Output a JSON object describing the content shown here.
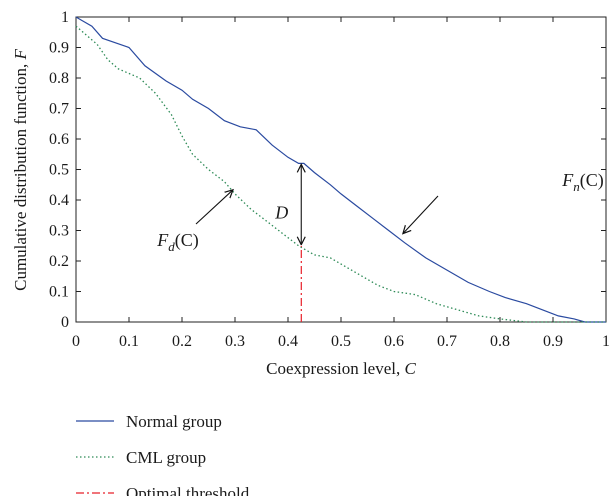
{
  "chart_data": {
    "type": "line",
    "xlabel_text": "Coexpression level, ",
    "xlabel_var": "C",
    "ylabel_text": "Cumulative distribution function, ",
    "ylabel_var": "F",
    "xlim": [
      0,
      1
    ],
    "ylim": [
      0,
      1
    ],
    "x_ticks": [
      "0",
      "0.1",
      "0.2",
      "0.3",
      "0.4",
      "0.5",
      "0.6",
      "0.7",
      "0.8",
      "0.9",
      "1"
    ],
    "y_ticks": [
      "0",
      "0.1",
      "0.2",
      "0.3",
      "0.4",
      "0.5",
      "0.6",
      "0.7",
      "0.8",
      "0.9",
      "1"
    ],
    "grid": false,
    "legend_position": "bottom-outside",
    "series": [
      {
        "name": "Normal group",
        "style": "solid",
        "color": "#2a4aa0",
        "points": [
          [
            0.0,
            1.0
          ],
          [
            0.01,
            0.99
          ],
          [
            0.03,
            0.97
          ],
          [
            0.05,
            0.93
          ],
          [
            0.1,
            0.9
          ],
          [
            0.13,
            0.84
          ],
          [
            0.17,
            0.79
          ],
          [
            0.2,
            0.76
          ],
          [
            0.22,
            0.73
          ],
          [
            0.25,
            0.7
          ],
          [
            0.28,
            0.66
          ],
          [
            0.31,
            0.64
          ],
          [
            0.34,
            0.63
          ],
          [
            0.37,
            0.58
          ],
          [
            0.4,
            0.54
          ],
          [
            0.42,
            0.52
          ],
          [
            0.43,
            0.52
          ],
          [
            0.45,
            0.49
          ],
          [
            0.48,
            0.45
          ],
          [
            0.5,
            0.42
          ],
          [
            0.53,
            0.38
          ],
          [
            0.56,
            0.34
          ],
          [
            0.59,
            0.3
          ],
          [
            0.62,
            0.26
          ],
          [
            0.66,
            0.21
          ],
          [
            0.7,
            0.17
          ],
          [
            0.74,
            0.13
          ],
          [
            0.78,
            0.1
          ],
          [
            0.81,
            0.08
          ],
          [
            0.85,
            0.06
          ],
          [
            0.88,
            0.04
          ],
          [
            0.91,
            0.02
          ],
          [
            0.94,
            0.01
          ],
          [
            0.96,
            0.0
          ],
          [
            1.0,
            0.0
          ]
        ]
      },
      {
        "name": "CML group",
        "style": "dotted",
        "color": "#2e8b57",
        "points": [
          [
            0.0,
            0.97
          ],
          [
            0.02,
            0.94
          ],
          [
            0.04,
            0.91
          ],
          [
            0.06,
            0.86
          ],
          [
            0.08,
            0.83
          ],
          [
            0.12,
            0.8
          ],
          [
            0.15,
            0.75
          ],
          [
            0.18,
            0.68
          ],
          [
            0.2,
            0.61
          ],
          [
            0.22,
            0.55
          ],
          [
            0.25,
            0.5
          ],
          [
            0.28,
            0.46
          ],
          [
            0.3,
            0.42
          ],
          [
            0.33,
            0.37
          ],
          [
            0.36,
            0.33
          ],
          [
            0.39,
            0.29
          ],
          [
            0.42,
            0.25
          ],
          [
            0.45,
            0.22
          ],
          [
            0.48,
            0.21
          ],
          [
            0.51,
            0.18
          ],
          [
            0.54,
            0.15
          ],
          [
            0.57,
            0.12
          ],
          [
            0.6,
            0.1
          ],
          [
            0.64,
            0.09
          ],
          [
            0.68,
            0.06
          ],
          [
            0.72,
            0.04
          ],
          [
            0.76,
            0.02
          ],
          [
            0.8,
            0.01
          ],
          [
            0.85,
            0.0
          ],
          [
            1.0,
            0.0
          ]
        ]
      },
      {
        "name": "Optimal threshold",
        "style": "dashdot",
        "color": "#e8202a",
        "points": [
          [
            0.425,
            0.0
          ],
          [
            0.425,
            0.25
          ]
        ]
      }
    ],
    "annotations": {
      "D": {
        "text": "D",
        "x_from": 0.425,
        "y_from": 0.25,
        "y_to": 0.52
      },
      "Fn": {
        "main": "F",
        "sub": "n",
        "rest": "(C)",
        "arrow_to": [
          0.63,
          0.28
        ]
      },
      "Fd": {
        "main": "F",
        "sub": "d",
        "rest": "(C)",
        "arrow_to": [
          0.3,
          0.44
        ]
      }
    }
  }
}
